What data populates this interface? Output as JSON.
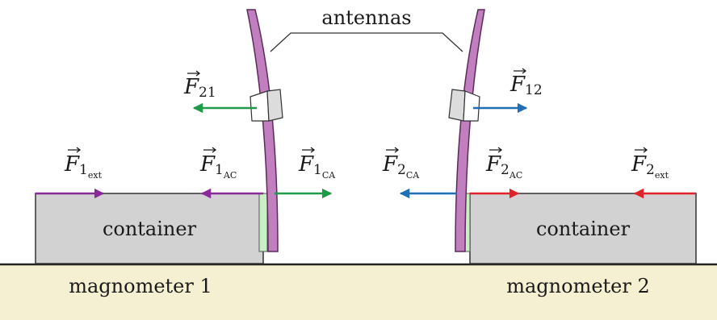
{
  "labels": {
    "antennas": "antennas",
    "container_left": "container",
    "container_right": "container",
    "magnometer_1": "magnometer 1",
    "magnometer_2": "magnometer 2"
  },
  "forces": {
    "F21": {
      "symbol": "F",
      "sub": "21",
      "subsub": ""
    },
    "F12": {
      "symbol": "F",
      "sub": "12",
      "subsub": ""
    },
    "F1ext": {
      "symbol": "F",
      "sub": "1",
      "subsub": "ext"
    },
    "F1AC": {
      "symbol": "F",
      "sub": "1",
      "subsub": "AC"
    },
    "F1CA": {
      "symbol": "F",
      "sub": "1",
      "subsub": "CA"
    },
    "F2CA": {
      "symbol": "F",
      "sub": "2",
      "subsub": "CA"
    },
    "F2AC": {
      "symbol": "F",
      "sub": "2",
      "subsub": "AC"
    },
    "F2ext": {
      "symbol": "F",
      "sub": "2",
      "subsub": "ext"
    }
  },
  "colors": {
    "antenna_fill": "#c27fc0",
    "antenna_stroke": "#5b2a5b",
    "container_fill": "#d2d2d2",
    "container_stroke": "#333333",
    "ground_fill": "#f6f0d2",
    "green_arrow": "#1f9a48",
    "blue_arrow": "#1f6fb5",
    "purple_arrow": "#8a2a9a",
    "red_arrow": "#e0222a",
    "magnet_fill": "#c9efc4"
  },
  "icons": {
    "arrow": "arrow-icon",
    "vector_bar": "vector-arrow-icon"
  }
}
